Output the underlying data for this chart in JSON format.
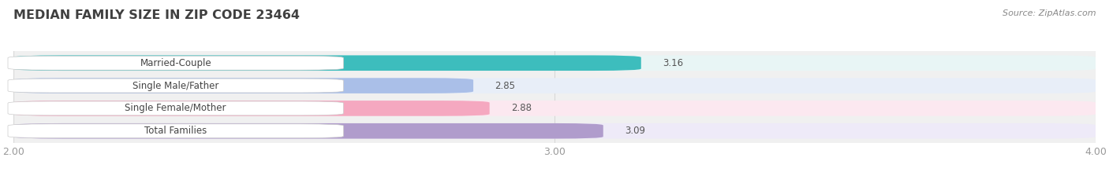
{
  "title": "MEDIAN FAMILY SIZE IN ZIP CODE 23464",
  "source": "Source: ZipAtlas.com",
  "categories": [
    "Married-Couple",
    "Single Male/Father",
    "Single Female/Mother",
    "Total Families"
  ],
  "values": [
    3.16,
    2.85,
    2.88,
    3.09
  ],
  "bar_colors": [
    "#3dbdbd",
    "#aabfe8",
    "#f5a8c0",
    "#b09ccc"
  ],
  "bar_bg_colors": [
    "#e8f5f5",
    "#e8eef8",
    "#fce8f0",
    "#eeeaf8"
  ],
  "xlim": [
    2.0,
    4.0
  ],
  "xticks": [
    2.0,
    3.0,
    4.0
  ],
  "xtick_labels": [
    "2.00",
    "3.00",
    "4.00"
  ],
  "background_color": "#ffffff",
  "plot_bg_color": "#f0f0f0",
  "label_fontsize": 8.5,
  "value_fontsize": 8.5,
  "title_fontsize": 11.5
}
